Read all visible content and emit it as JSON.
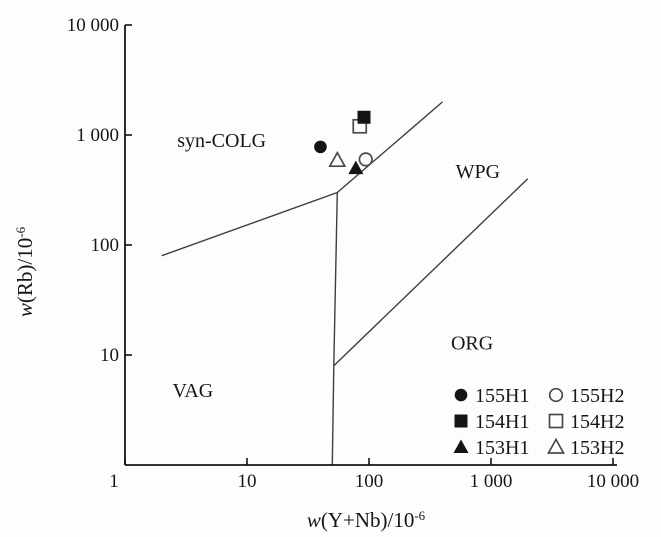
{
  "figure": {
    "background": "#fdfdfd",
    "ink": "#141414",
    "boundary_line_color": "#3e3e3e",
    "open_marker_stroke": "#4a4a4a"
  },
  "chart_data": {
    "type": "scatter",
    "x_axis": {
      "label_prefix": "w",
      "label_main": "(Y+Nb)/10",
      "label_sup": "-6",
      "scale": "log",
      "range": [
        1,
        10000
      ],
      "ticks": [
        {
          "v": 1,
          "label": "1",
          "dx": -11
        },
        {
          "v": 10,
          "label": "10",
          "dx": 0
        },
        {
          "v": 100,
          "label": "100",
          "dx": 0
        },
        {
          "v": 1000,
          "label": "1 000",
          "dx": 0
        },
        {
          "v": 10000,
          "label": "10 000",
          "dx": 0
        }
      ]
    },
    "y_axis": {
      "label_prefix": "w",
      "label_main": "(Rb)/10",
      "label_sup": "-6",
      "scale": "log",
      "range": [
        1,
        10000
      ],
      "ticks": [
        {
          "v": 10,
          "label": "10"
        },
        {
          "v": 100,
          "label": "100"
        },
        {
          "v": 1000,
          "label": "1 000"
        },
        {
          "v": 10000,
          "label": "10 000"
        }
      ]
    },
    "series": [
      {
        "name": "155H1",
        "marker": "circle",
        "fill": "filled",
        "x": 40,
        "y": 780
      },
      {
        "name": "155H2",
        "marker": "circle",
        "fill": "open",
        "x": 94,
        "y": 600
      },
      {
        "name": "154H1",
        "marker": "square",
        "fill": "filled",
        "x": 91,
        "y": 1450
      },
      {
        "name": "154H2",
        "marker": "square",
        "fill": "open",
        "x": 84,
        "y": 1200
      },
      {
        "name": "153H1",
        "marker": "triangle",
        "fill": "filled",
        "x": 78,
        "y": 500
      },
      {
        "name": "153H2",
        "marker": "triangle",
        "fill": "open",
        "x": 55,
        "y": 590
      }
    ],
    "field_labels": [
      {
        "text": "syn-COLG",
        "x": 6.2,
        "y": 900
      },
      {
        "text": "WPG",
        "x": 780,
        "y": 470
      },
      {
        "text": "ORG",
        "x": 700,
        "y": 13
      },
      {
        "text": "VAG",
        "x": 3.6,
        "y": 4.8
      }
    ],
    "boundaries": [
      {
        "name": "vag-syncolg-wpg",
        "points": [
          [
            2,
            80
          ],
          [
            55,
            300
          ],
          [
            400,
            2000
          ]
        ]
      },
      {
        "name": "vag-org",
        "points": [
          [
            55,
            300
          ],
          [
            51.5,
            8
          ],
          [
            50,
            1
          ]
        ]
      },
      {
        "name": "wpg-org",
        "points": [
          [
            51.5,
            8
          ],
          [
            2000,
            400
          ]
        ]
      }
    ],
    "legend": {
      "rows": [
        {
          "left": {
            "marker": "circle",
            "fill": "filled",
            "label": "155H1"
          },
          "right": {
            "marker": "circle",
            "fill": "open",
            "label": "155H2"
          }
        },
        {
          "left": {
            "marker": "square",
            "fill": "filled",
            "label": "154H1"
          },
          "right": {
            "marker": "square",
            "fill": "open",
            "label": "154H2"
          }
        },
        {
          "left": {
            "marker": "triangle",
            "fill": "filled",
            "label": "153H1"
          },
          "right": {
            "marker": "triangle",
            "fill": "open",
            "label": "153H2"
          }
        }
      ]
    }
  }
}
